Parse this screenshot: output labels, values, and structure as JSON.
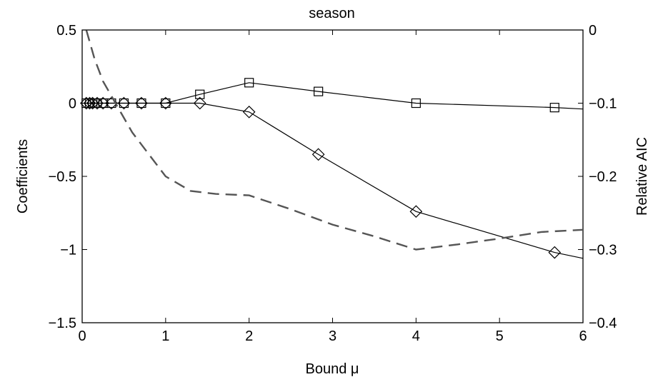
{
  "chart_data": {
    "type": "line",
    "title": "season",
    "xlabel": "Bound μ",
    "ylabel": "Coefficients",
    "y2label": "Relative AIC",
    "xlim": [
      0,
      6
    ],
    "ylim": [
      -1.5,
      0.5
    ],
    "y2lim": [
      -0.4,
      0
    ],
    "x_ticks": [
      "0",
      "1",
      "2",
      "3",
      "4",
      "5",
      "6"
    ],
    "y_ticks": [
      "0.5",
      "0",
      "−0.5",
      "−1",
      "−1.5"
    ],
    "y2_ticks": [
      "0",
      "−0.1",
      "−0.2",
      "−0.3",
      "−0.4"
    ],
    "grid": false,
    "series": [
      {
        "marker": "square",
        "axis": "left",
        "color": "#000000",
        "x": [
          0.05,
          0.09,
          0.125,
          0.18,
          0.25,
          0.35,
          0.5,
          0.71,
          1.0,
          1.41,
          2.0,
          2.83,
          4.0,
          5.66,
          6.0
        ],
        "y": [
          0,
          0,
          0,
          0,
          0,
          0,
          0,
          0,
          0,
          0.06,
          0.14,
          0.08,
          0,
          -0.03,
          -0.04
        ],
        "markers": [
          true,
          true,
          true,
          true,
          true,
          true,
          true,
          true,
          true,
          true,
          true,
          true,
          true,
          true,
          false
        ]
      },
      {
        "marker": "diamond",
        "axis": "left",
        "color": "#000000",
        "x": [
          0.05,
          0.09,
          0.125,
          0.18,
          0.25,
          0.35,
          0.5,
          0.71,
          1.0,
          1.41,
          2.0,
          2.83,
          4.0,
          5.66,
          6.0
        ],
        "y": [
          0,
          0,
          0,
          0,
          0,
          0,
          0,
          0,
          0,
          0,
          -0.06,
          -0.35,
          -0.74,
          -1.02,
          -1.06
        ],
        "markers": [
          true,
          true,
          true,
          true,
          true,
          true,
          true,
          true,
          true,
          true,
          true,
          true,
          true,
          true,
          false
        ]
      },
      {
        "style": "dashed",
        "axis": "right",
        "color": "#555555",
        "x": [
          0.05,
          0.15,
          0.25,
          0.4,
          0.6,
          0.8,
          1.0,
          1.3,
          1.6,
          2.0,
          2.5,
          3.0,
          3.5,
          4.0,
          4.5,
          5.0,
          5.5,
          6.0
        ],
        "y": [
          0,
          -0.04,
          -0.07,
          -0.1,
          -0.14,
          -0.17,
          -0.2,
          -0.22,
          -0.224,
          -0.226,
          -0.245,
          -0.266,
          -0.282,
          -0.3,
          -0.293,
          -0.285,
          -0.276,
          -0.273
        ]
      }
    ]
  }
}
